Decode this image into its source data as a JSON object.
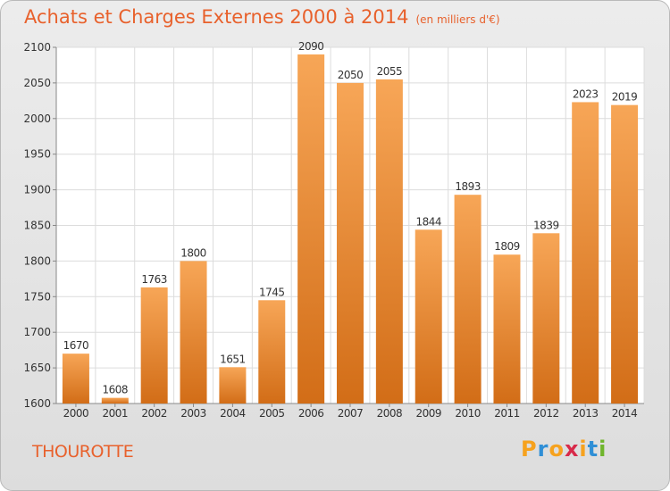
{
  "header": {
    "title": "Achats et Charges Externes 2000 à 2014",
    "unit": "(en milliers d'€)"
  },
  "commune": "THOUROTTE",
  "logo": {
    "letters": [
      "P",
      "r",
      "o",
      "x",
      "i",
      "t",
      "i"
    ],
    "colors": [
      "#f6a21e",
      "#2f8fd6",
      "#f6a21e",
      "#d82a4a",
      "#f6a21e",
      "#2f8fd6",
      "#6fb52c"
    ]
  },
  "chart_data": {
    "type": "bar",
    "title": "Achats et Charges Externes 2000 à 2014",
    "subtitle": "(en milliers d'€)",
    "categories": [
      "2000",
      "2001",
      "2002",
      "2003",
      "2004",
      "2005",
      "2006",
      "2007",
      "2008",
      "2009",
      "2010",
      "2011",
      "2012",
      "2013",
      "2014"
    ],
    "values": [
      1670,
      1608,
      1763,
      1800,
      1651,
      1745,
      2090,
      2050,
      2055,
      1844,
      1893,
      1809,
      1839,
      2023,
      2019
    ],
    "ylim": [
      1600,
      2100
    ],
    "yticks": [
      1600,
      1650,
      1700,
      1750,
      1800,
      1850,
      1900,
      1950,
      2000,
      2050,
      2100
    ],
    "grid": true,
    "colors": {
      "bar_top": "#f7a657",
      "bar_bottom": "#d26d17",
      "plot_bg": "#ffffff",
      "grid": "#dcdcdc",
      "text": "#333333"
    }
  }
}
